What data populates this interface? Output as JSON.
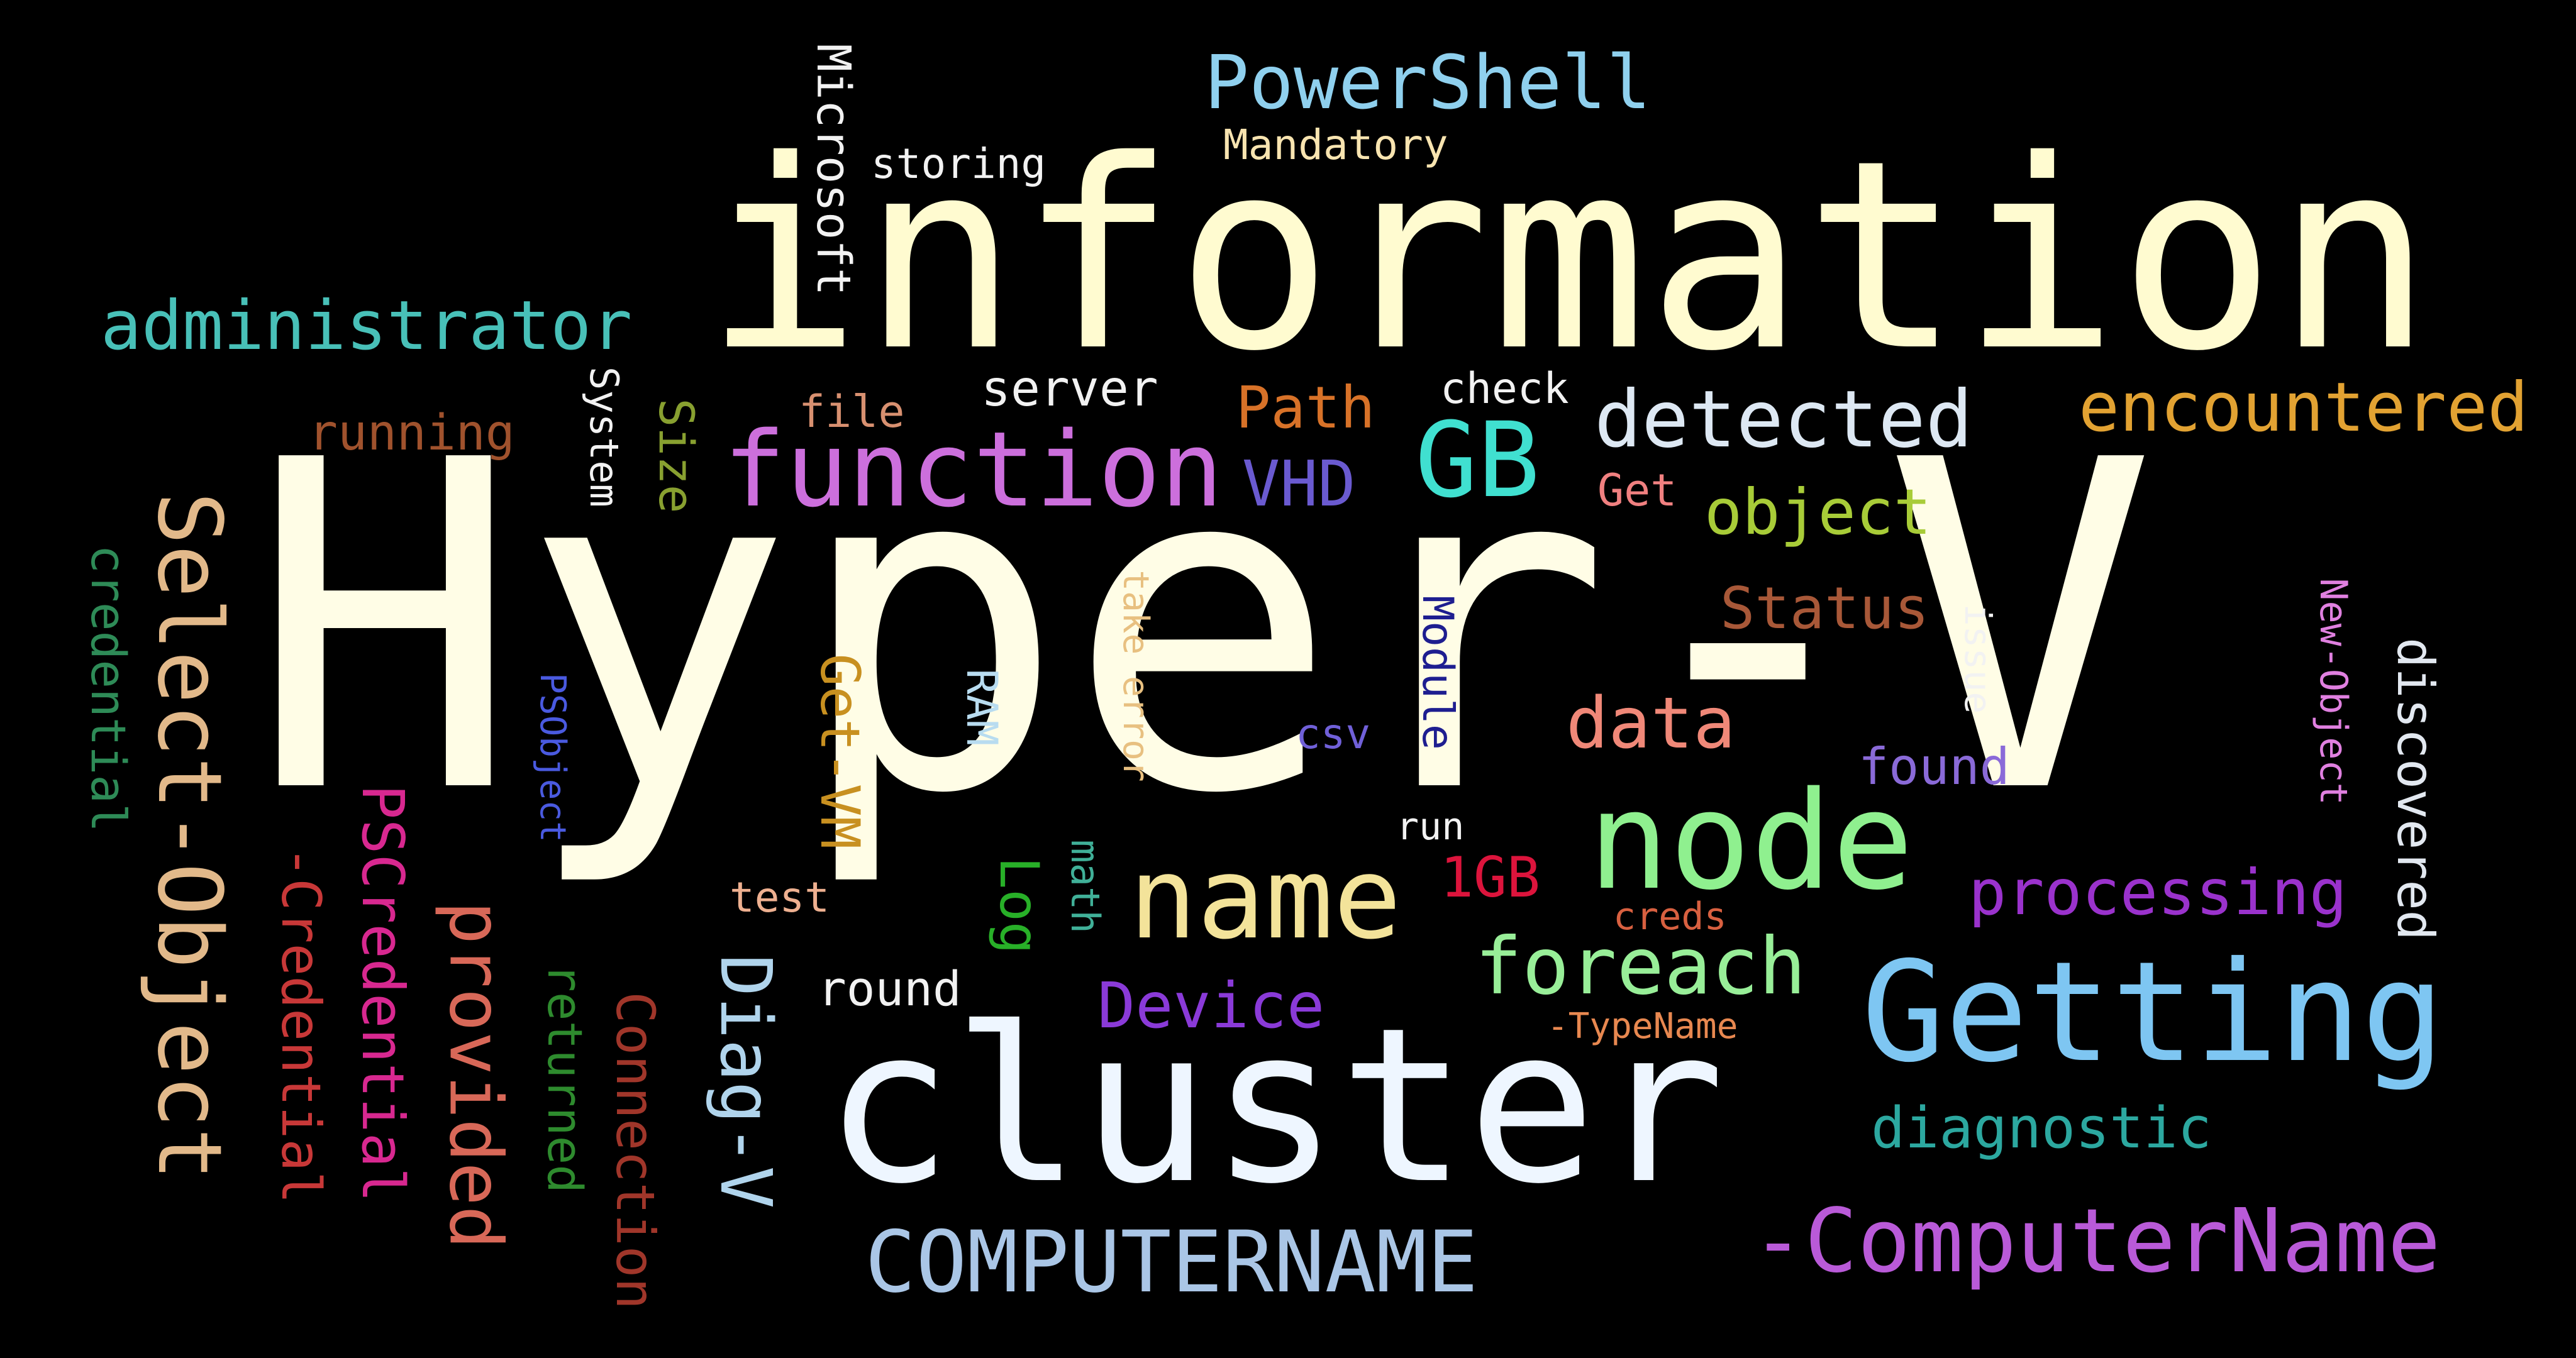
{
  "words": [
    {
      "text": "Hyper-V",
      "color": "#fffde6"
    },
    {
      "text": "information",
      "color": "#fffbd0"
    },
    {
      "text": "cluster",
      "color": "#eef6ff"
    },
    {
      "text": "Getting",
      "color": "#7ec6f2"
    },
    {
      "text": "node",
      "color": "#8ff08f"
    },
    {
      "text": "name",
      "color": "#f3e39a"
    },
    {
      "text": "function",
      "color": "#cc6fdc"
    },
    {
      "text": "-ComputerName",
      "color": "#b95ad8"
    },
    {
      "text": "COMPUTERNAME",
      "color": "#aac6e6"
    },
    {
      "text": "Select-Object",
      "color": "#e2b98a"
    },
    {
      "text": "PowerShell",
      "color": "#8fd0ee"
    },
    {
      "text": "administrator",
      "color": "#48c0b8"
    },
    {
      "text": "detected",
      "color": "#dde8f3"
    },
    {
      "text": "encountered",
      "color": "#e2a232"
    },
    {
      "text": "GB",
      "color": "#40e0d0"
    },
    {
      "text": "foreach",
      "color": "#98ee98"
    },
    {
      "text": "processing",
      "color": "#9a32cc"
    },
    {
      "text": "data",
      "color": "#f08878"
    },
    {
      "text": "Device",
      "color": "#8a3ad8"
    },
    {
      "text": "diagnostic",
      "color": "#2ca8a0"
    },
    {
      "text": "object",
      "color": "#a8cc38"
    },
    {
      "text": "Status",
      "color": "#a85838"
    },
    {
      "text": "VHD",
      "color": "#6a5ad0"
    },
    {
      "text": "Path",
      "color": "#d87228"
    },
    {
      "text": "running",
      "color": "#a0522d"
    },
    {
      "text": "server",
      "color": "#f2f2f2"
    },
    {
      "text": "check",
      "color": "#f2f2f2"
    },
    {
      "text": "file",
      "color": "#d89070"
    },
    {
      "text": "Get",
      "color": "#f08080"
    },
    {
      "text": "found",
      "color": "#8a6ad8"
    },
    {
      "text": "1GB",
      "color": "#dc143c"
    },
    {
      "text": "round",
      "color": "#f2f2f2"
    },
    {
      "text": "test",
      "color": "#eeb090"
    },
    {
      "text": "creds",
      "color": "#d86040"
    },
    {
      "text": "-TypeName",
      "color": "#e88850"
    },
    {
      "text": "csv",
      "color": "#7060d8"
    },
    {
      "text": "run",
      "color": "#f2f2f2"
    },
    {
      "text": "storing",
      "color": "#f2f2f2"
    },
    {
      "text": "Mandatory",
      "color": "#f8e4b0"
    },
    {
      "text": "Microsoft",
      "color": "#f2f2f2"
    },
    {
      "text": "System",
      "color": "#f2f2f2"
    },
    {
      "text": "Size",
      "color": "#88a030"
    },
    {
      "text": "credential",
      "color": "#2e8b57"
    },
    {
      "text": "-Credential",
      "color": "#c83838"
    },
    {
      "text": "PSCredential",
      "color": "#d82890"
    },
    {
      "text": "provided",
      "color": "#d86858"
    },
    {
      "text": "returned",
      "color": "#2e8b2e"
    },
    {
      "text": "Connection",
      "color": "#a0362a"
    },
    {
      "text": "Diag-V",
      "color": "#b0d4ec"
    },
    {
      "text": "PSObject",
      "color": "#4a5ae0"
    },
    {
      "text": "Get-VM",
      "color": "#c89020"
    },
    {
      "text": "RAM",
      "color": "#b8dcf0"
    },
    {
      "text": "take error",
      "color": "#e8c080"
    },
    {
      "text": "Module",
      "color": "#1e1e90"
    },
    {
      "text": "Log",
      "color": "#28b028"
    },
    {
      "text": "math",
      "color": "#40b098"
    },
    {
      "text": "issue",
      "color": "#f2f2f2"
    },
    {
      "text": "New-Object",
      "color": "#e080e0"
    },
    {
      "text": "discovered",
      "color": "#e2e8f0"
    }
  ]
}
